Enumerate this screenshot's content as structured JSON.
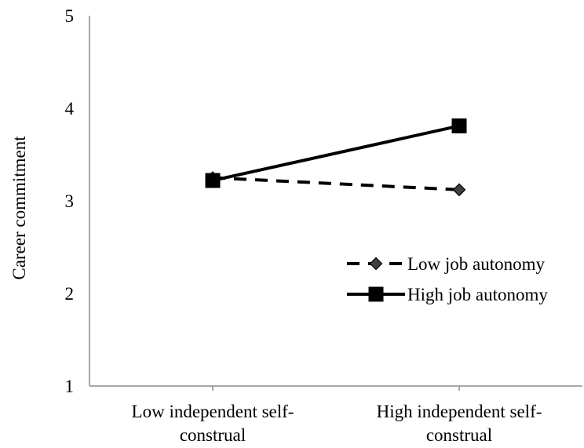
{
  "chart_data": {
    "type": "line",
    "title": "",
    "xlabel": "",
    "ylabel": "Career commitment",
    "categories": [
      [
        "Low independent self-",
        "construal"
      ],
      [
        "High independent self-",
        "construal"
      ]
    ],
    "ylim": [
      1,
      5
    ],
    "yticks": [
      "1",
      "2",
      "3",
      "4",
      "5"
    ],
    "grid": false,
    "legend_position": "right",
    "series": [
      {
        "name": "Low job autonomy",
        "values": [
          3.25,
          3.12
        ],
        "style": "dashed",
        "marker": "diamond",
        "color": "#000000",
        "marker_fill": "#404040"
      },
      {
        "name": "High job autonomy",
        "values": [
          3.22,
          3.81
        ],
        "style": "solid",
        "marker": "square",
        "color": "#000000",
        "marker_fill": "#000000"
      }
    ]
  }
}
